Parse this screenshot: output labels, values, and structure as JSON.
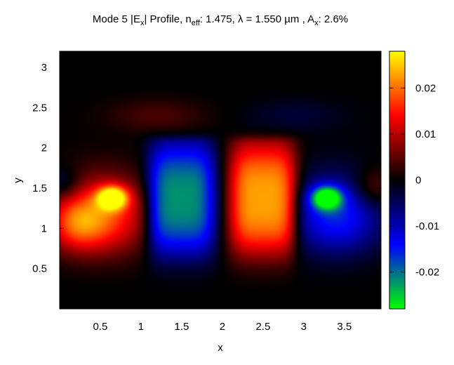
{
  "title": {
    "prefix": "Mode 5 |E",
    "sub1": "x",
    "mid1": "| Profile, n",
    "sub2": "eff",
    "mid2": ": 1.475, λ = 1.550 µm , A",
    "sub3": "x",
    "suffix": ": 2.6%"
  },
  "chart_data": {
    "type": "heatmap",
    "xlabel": "x",
    "ylabel": "y",
    "xlim": [
      0,
      3.95
    ],
    "ylim": [
      0,
      3.2
    ],
    "xticks": [
      {
        "value": 0.5,
        "label": "0.5"
      },
      {
        "value": 1,
        "label": "1"
      },
      {
        "value": 1.5,
        "label": "1.5"
      },
      {
        "value": 2,
        "label": "2"
      },
      {
        "value": 2.5,
        "label": "2.5"
      },
      {
        "value": 3,
        "label": "3"
      },
      {
        "value": 3.5,
        "label": "3.5"
      }
    ],
    "yticks": [
      {
        "value": 0.5,
        "label": "0.5"
      },
      {
        "value": 1,
        "label": "1"
      },
      {
        "value": 1.5,
        "label": "1.5"
      },
      {
        "value": 2,
        "label": "2"
      },
      {
        "value": 2.5,
        "label": "2.5"
      },
      {
        "value": 3,
        "label": "3"
      }
    ],
    "colorbar": {
      "range": [
        -0.028,
        0.028
      ],
      "ticks": [
        {
          "value": 0.02,
          "label": "0.02"
        },
        {
          "value": 0.01,
          "label": "0.01"
        },
        {
          "value": 0,
          "label": "0"
        },
        {
          "value": -0.01,
          "label": "-0.01"
        },
        {
          "value": -0.02,
          "label": "-0.02"
        }
      ],
      "colormap": [
        {
          "value": -0.028,
          "color": "#00ff00"
        },
        {
          "value": -0.014,
          "color": "#0000ff"
        },
        {
          "value": 0,
          "color": "#000000"
        },
        {
          "value": 0.014,
          "color": "#ff0000"
        },
        {
          "value": 0.028,
          "color": "#ffff00"
        }
      ]
    },
    "field_lobes": [
      {
        "x": 1.5,
        "y": 1.35,
        "peak": -0.022
      },
      {
        "x": 2.5,
        "y": 1.35,
        "peak": 0.023
      },
      {
        "x": 0.65,
        "y": 1.38,
        "peak": 0.027
      },
      {
        "x": 3.28,
        "y": 1.38,
        "peak": -0.027
      },
      {
        "x": 0.2,
        "y": 1.0,
        "peak": 0.012
      },
      {
        "x": 3.75,
        "y": 1.0,
        "peak": -0.011
      }
    ]
  }
}
